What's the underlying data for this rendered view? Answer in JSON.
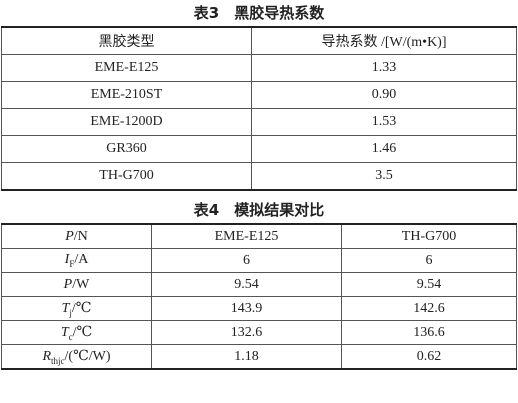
{
  "table3": {
    "title": "表3　黑胶导热系数",
    "header": [
      "黑胶类型",
      "导热系数 /[W/(m•K)]"
    ],
    "rows": [
      [
        "EME-E125",
        "1.33"
      ],
      [
        "EME-210ST",
        "0.90"
      ],
      [
        "EME-1200D",
        "1.53"
      ],
      [
        "GR360",
        "1.46"
      ],
      [
        "TH-G700",
        "3.5"
      ]
    ]
  },
  "table4": {
    "title": "表4　模拟结果对比",
    "header": [
      {
        "symbol": "P",
        "unit": "/N"
      },
      "EME-E125",
      "TH-G700"
    ],
    "rows": [
      [
        {
          "symbol": "I",
          "sub": "F",
          "unit": "/A"
        },
        "6",
        "6"
      ],
      [
        {
          "symbol": "P",
          "unit": "/W"
        },
        "9.54",
        "9.54"
      ],
      [
        {
          "symbol": "T",
          "sub": "j",
          "unit": "/℃"
        },
        "143.9",
        "142.6"
      ],
      [
        {
          "symbol": "T",
          "sub": "c",
          "unit": "/℃"
        },
        "132.6",
        "136.6"
      ],
      [
        {
          "symbol": "R",
          "sub": "thjc",
          "unit": "/(℃/W)"
        },
        "1.18",
        "0.62"
      ]
    ]
  }
}
